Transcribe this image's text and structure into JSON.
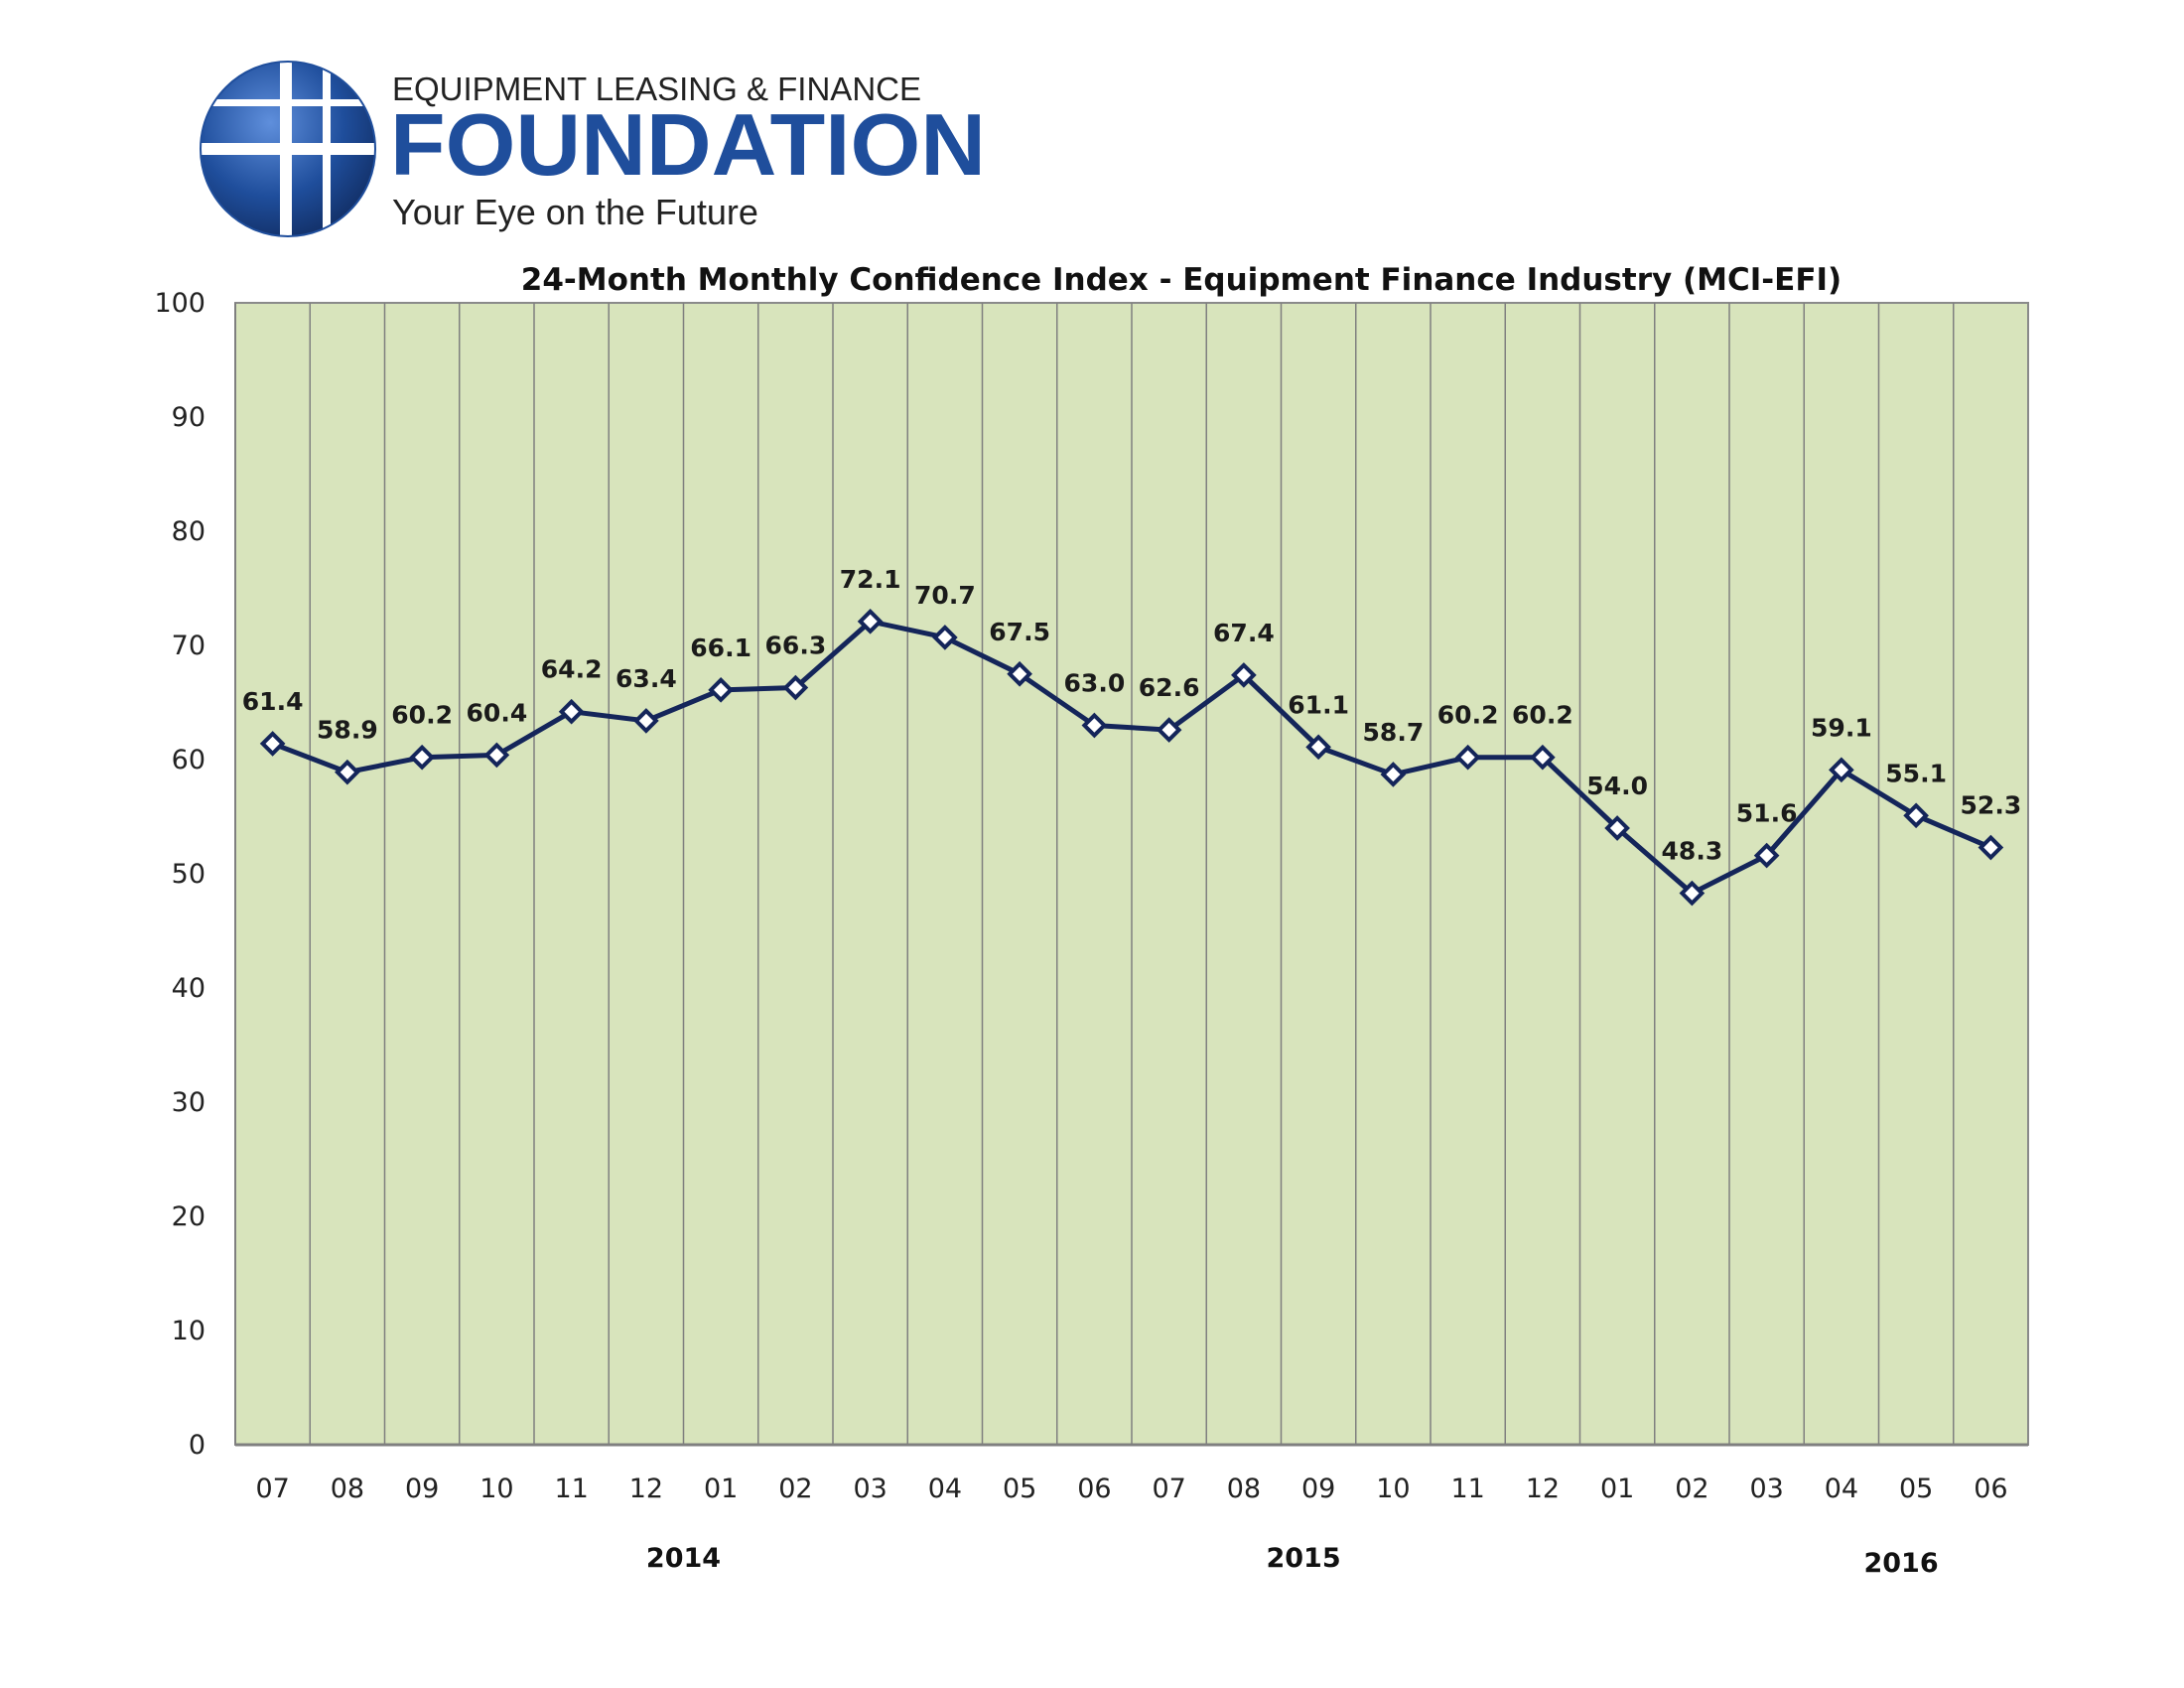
{
  "logo": {
    "top_text": "EQUIPMENT LEASING & FINANCE",
    "main_text": "FOUNDATION",
    "tagline": "Your Eye on the Future",
    "brand_color": "#1f4e9c"
  },
  "chart_data": {
    "type": "line",
    "title": "24-Month Monthly Confidence Index - Equipment Finance Industry (MCI-EFI)",
    "categories": [
      "07",
      "08",
      "09",
      "10",
      "11",
      "12",
      "01",
      "02",
      "03",
      "04",
      "05",
      "06",
      "07",
      "08",
      "09",
      "10",
      "11",
      "12",
      "01",
      "02",
      "03",
      "04",
      "05",
      "06"
    ],
    "series": [
      {
        "name": "MCI-EFI",
        "values": [
          61.4,
          58.9,
          60.2,
          60.4,
          64.2,
          63.4,
          66.1,
          66.3,
          72.1,
          70.7,
          67.5,
          63.0,
          62.6,
          67.4,
          61.1,
          58.7,
          60.2,
          60.2,
          54.0,
          48.3,
          51.6,
          59.1,
          55.1,
          52.3
        ],
        "labels": [
          "61.4",
          "58.9",
          "60.2",
          "60.4",
          "64.2",
          "63.4",
          "66.1",
          "66.3",
          "72.1",
          "70.7",
          "67.5",
          "63.0",
          "62.6",
          "67.4",
          "61.1",
          "58.7",
          "60.2",
          "60.2",
          "54.0",
          "48.3",
          "51.6",
          "59.1",
          "55.1",
          "52.3"
        ]
      }
    ],
    "yticks": [
      "0",
      "10",
      "20",
      "30",
      "40",
      "50",
      "60",
      "70",
      "80",
      "90",
      "100"
    ],
    "ylim": [
      0,
      100
    ],
    "year_labels": [
      {
        "text": "2014",
        "position": "under months 11-02"
      },
      {
        "text": "2015",
        "position": "under months 07-09"
      },
      {
        "text": "2016",
        "position": "under months 04-05"
      }
    ],
    "colors": {
      "plot_bg": "#d8e4bc",
      "line": "#14255a",
      "grid": "#7f7f7f"
    }
  }
}
